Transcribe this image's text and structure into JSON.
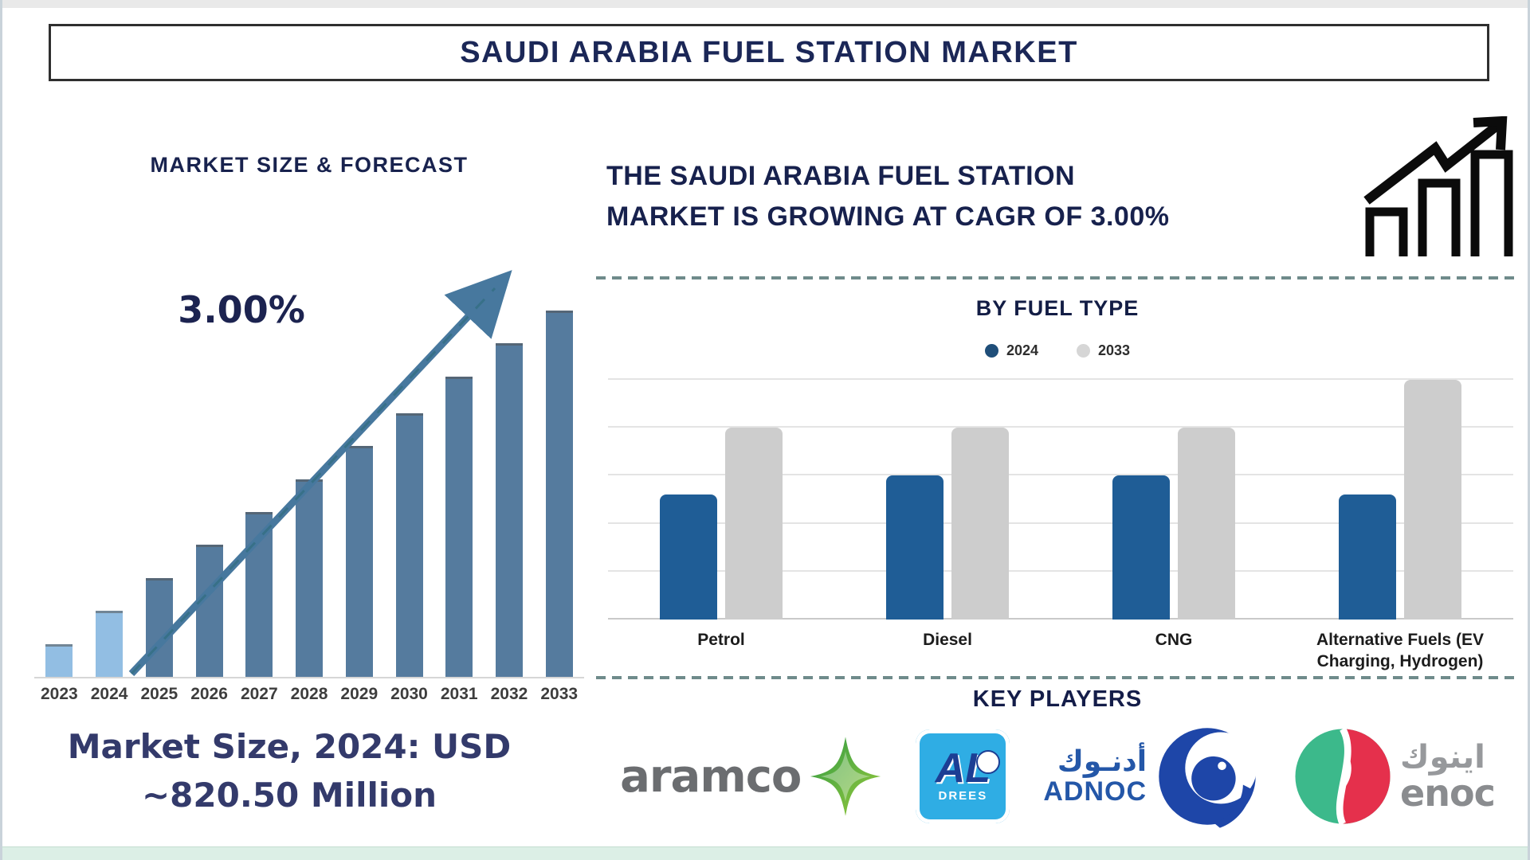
{
  "page": {
    "title": "SAUDI ARABIA FUEL STATION MARKET"
  },
  "left": {
    "section_title": "MARKET SIZE & FORECAST",
    "cagr_label": "3.00%",
    "market_note_lines": [
      "Market Size, 2024: USD",
      "~820.50 Million"
    ]
  },
  "right": {
    "headline_lines": [
      "THE SAUDI ARABIA FUEL STATION",
      "MARKET IS GROWING AT CAGR OF 3.00%"
    ],
    "fuel_type_title": "BY FUEL TYPE",
    "legend": [
      {
        "label": "2024",
        "color": "#1f4e79"
      },
      {
        "label": "2033",
        "color": "#d6d6d6"
      }
    ],
    "key_players_title": "KEY PLAYERS",
    "players": {
      "aramco": {
        "wordmark": "aramco"
      },
      "aldrees": {
        "line1": "AL",
        "line2": "DREES"
      },
      "adnoc": {
        "arabic": "أدنـوك",
        "latin": "ADNOC"
      },
      "enoc": {
        "arabic": "اينوك",
        "latin": "enoc"
      }
    }
  },
  "chart_data": [
    {
      "type": "bar",
      "title": "MARKET SIZE & FORECAST",
      "categories": [
        "2023",
        "2024",
        "2025",
        "2026",
        "2027",
        "2028",
        "2029",
        "2030",
        "2031",
        "2032",
        "2033"
      ],
      "values": [
        9,
        18,
        27,
        36,
        45,
        54,
        63,
        72,
        82,
        91,
        100
      ],
      "value_note": "relative bar heights, % of tallest bar (no y-axis shown)",
      "annotation": "3.00%",
      "footnote": "Market Size, 2024: USD ~820.50 Million",
      "xlabel": "",
      "ylabel": "",
      "ylim": [
        0,
        100
      ],
      "grid": false,
      "legend_position": "none",
      "colors": {
        "historical": "#92bee3",
        "forecast": "#557b9e"
      },
      "historical_years": [
        "2023",
        "2024"
      ]
    },
    {
      "type": "bar",
      "title": "BY FUEL TYPE",
      "categories": [
        "Petrol",
        "Diesel",
        "CNG",
        "Alternative Fuels (EV Charging, Hydrogen)"
      ],
      "series": [
        {
          "name": "2024",
          "values": [
            52,
            60,
            60,
            52
          ],
          "color": "#1f5d96"
        },
        {
          "name": "2033",
          "values": [
            80,
            80,
            80,
            100
          ],
          "color": "#cdcdcd"
        }
      ],
      "value_note": "relative bar heights, % of chart height (no y-axis shown)",
      "xlabel": "",
      "ylabel": "",
      "ylim": [
        0,
        100
      ],
      "grid": true,
      "gridline_step": 20,
      "legend_position": "top"
    }
  ]
}
